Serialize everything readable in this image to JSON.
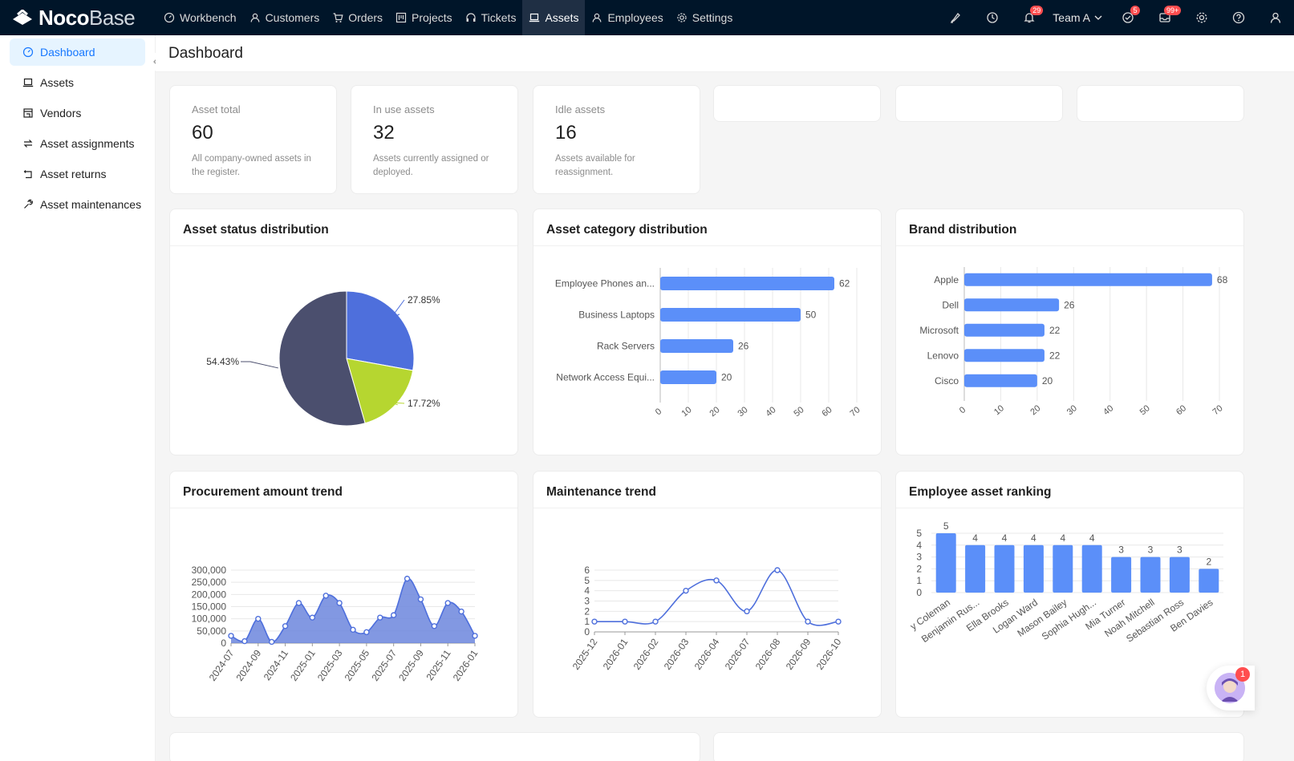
{
  "app": {
    "logo_bold": "Noco",
    "logo_light": "Base"
  },
  "nav": [
    {
      "label": "Workbench",
      "icon": "dashboard-icon"
    },
    {
      "label": "Customers",
      "icon": "user-icon"
    },
    {
      "label": "Orders",
      "icon": "cart-icon"
    },
    {
      "label": "Projects",
      "icon": "project-icon"
    },
    {
      "label": "Tickets",
      "icon": "headset-icon"
    },
    {
      "label": "Assets",
      "icon": "laptop-icon",
      "active": true
    },
    {
      "label": "Employees",
      "icon": "user-icon"
    },
    {
      "label": "Settings",
      "icon": "gear-icon"
    }
  ],
  "toolbar": {
    "notifications_badge": "29",
    "team_label": "Team A",
    "tasks_badge": "5",
    "messages_badge": "99+"
  },
  "sidebar": {
    "items": [
      {
        "label": "Dashboard",
        "icon": "dashboard-icon",
        "active": true
      },
      {
        "label": "Assets",
        "icon": "laptop-icon"
      },
      {
        "label": "Vendors",
        "icon": "shop-icon"
      },
      {
        "label": "Asset assignments",
        "icon": "swap-icon"
      },
      {
        "label": "Asset returns",
        "icon": "return-icon"
      },
      {
        "label": "Asset maintenances",
        "icon": "tool-icon"
      }
    ]
  },
  "page": {
    "title": "Dashboard"
  },
  "kpis": [
    {
      "label": "Asset total",
      "value": "60",
      "desc1": "All company-owned assets in",
      "desc2": "the register."
    },
    {
      "label": "In use assets",
      "value": "32",
      "desc1": "Assets currently assigned or",
      "desc2": "deployed."
    },
    {
      "label": "Idle assets",
      "value": "16",
      "desc1": "Assets available for",
      "desc2": "reassignment."
    }
  ],
  "assistant_badge": "1",
  "colors": {
    "accent": "#1677ff",
    "bar": "#5b8ff9",
    "pie": [
      "#4e6fdc",
      "#b6d630",
      "#4b4f6e"
    ]
  },
  "chart_data": [
    {
      "id": "status",
      "title": "Asset status distribution",
      "type": "pie",
      "slices": [
        {
          "value": 27.85,
          "label": "27.85%"
        },
        {
          "value": 17.72,
          "label": "17.72%"
        },
        {
          "value": 54.43,
          "label": "54.43%"
        }
      ]
    },
    {
      "id": "category",
      "title": "Asset category distribution",
      "type": "bar",
      "orientation": "horizontal",
      "categories": [
        "Employee Phones an...",
        "Business Laptops",
        "Rack Servers",
        "Network Access Equi..."
      ],
      "values": [
        62,
        50,
        26,
        20
      ],
      "xlim": [
        0,
        70
      ],
      "ticks": [
        0,
        10,
        20,
        30,
        40,
        50,
        60,
        70
      ]
    },
    {
      "id": "brand",
      "title": "Brand distribution",
      "type": "bar",
      "orientation": "horizontal",
      "categories": [
        "Apple",
        "Dell",
        "Microsoft",
        "Lenovo",
        "Cisco"
      ],
      "values": [
        68,
        26,
        22,
        22,
        20
      ],
      "xlim": [
        0,
        70
      ],
      "ticks": [
        0,
        10,
        20,
        30,
        40,
        50,
        60,
        70
      ]
    },
    {
      "id": "procurement",
      "title": "Procurement amount trend",
      "type": "area",
      "ylim": [
        0,
        300000
      ],
      "yticks": [
        "0",
        "50,000",
        "100,000",
        "150,000",
        "200,000",
        "250,000",
        "300,000"
      ],
      "xlabels": [
        "2024-07",
        "2024-09",
        "2024-11",
        "2025-01",
        "2025-03",
        "2025-05",
        "2025-07",
        "2025-09",
        "2025-11",
        "2026-01"
      ],
      "values": [
        30000,
        8000,
        100000,
        5000,
        70000,
        165000,
        105000,
        195000,
        165000,
        55000,
        45000,
        105000,
        115000,
        265000,
        180000,
        70000,
        165000,
        130000,
        30000
      ]
    },
    {
      "id": "maintenance",
      "title": "Maintenance trend",
      "type": "line",
      "ylim": [
        0,
        6
      ],
      "yticks": [
        "0",
        "1",
        "2",
        "3",
        "4",
        "5",
        "6"
      ],
      "xlabels": [
        "2025-12",
        "2026-01",
        "2026-02",
        "2026-03",
        "2026-04",
        "2026-07",
        "2026-08",
        "2026-09",
        "2026-10"
      ],
      "values": [
        1,
        1,
        1,
        4,
        5,
        2,
        6,
        1,
        1
      ]
    },
    {
      "id": "employee",
      "title": "Employee asset ranking",
      "type": "bar",
      "orientation": "vertical",
      "categories": [
        "y Coleman",
        "Benjamin Rus...",
        "Ella Brooks",
        "Logan Ward",
        "Mason Bailey",
        "Sophia Hugh...",
        "Mia Turner",
        "Noah Mitchell",
        "Sebastian Ross",
        "Ben Davies"
      ],
      "values": [
        5,
        4,
        4,
        4,
        4,
        4,
        3,
        3,
        3,
        2
      ],
      "ylim": [
        0,
        5
      ],
      "yticks": [
        "0",
        "1",
        "2",
        "3",
        "4",
        "5"
      ]
    }
  ]
}
